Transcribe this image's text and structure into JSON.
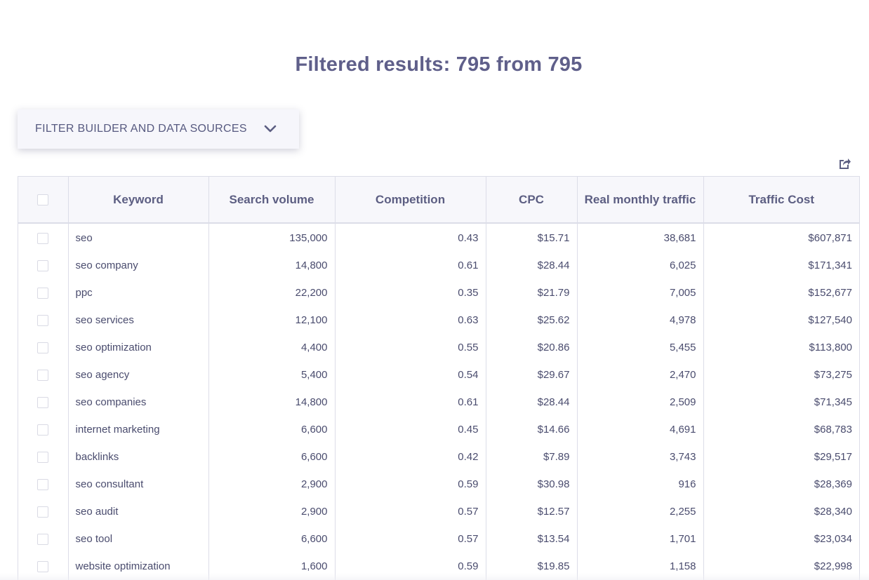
{
  "header": {
    "results_title": "Filtered results: 795 from 795"
  },
  "filter_toggle": {
    "label": "FILTER BUILDER AND DATA SOURCES",
    "icon": "chevron-down-icon"
  },
  "toolbar": {
    "export_icon": "export-icon"
  },
  "table": {
    "columns": [
      "Keyword",
      "Search volume",
      "Competition",
      "CPC",
      "Real monthly traffic",
      "Traffic Cost"
    ],
    "rows": [
      {
        "keyword": "seo",
        "search_volume": "135,000",
        "competition": "0.43",
        "cpc": "$15.71",
        "traffic": "38,681",
        "traffic_cost": "$607,871"
      },
      {
        "keyword": "seo company",
        "search_volume": "14,800",
        "competition": "0.61",
        "cpc": "$28.44",
        "traffic": "6,025",
        "traffic_cost": "$171,341"
      },
      {
        "keyword": "ppc",
        "search_volume": "22,200",
        "competition": "0.35",
        "cpc": "$21.79",
        "traffic": "7,005",
        "traffic_cost": "$152,677"
      },
      {
        "keyword": "seo services",
        "search_volume": "12,100",
        "competition": "0.63",
        "cpc": "$25.62",
        "traffic": "4,978",
        "traffic_cost": "$127,540"
      },
      {
        "keyword": "seo optimization",
        "search_volume": "4,400",
        "competition": "0.55",
        "cpc": "$20.86",
        "traffic": "5,455",
        "traffic_cost": "$113,800"
      },
      {
        "keyword": "seo agency",
        "search_volume": "5,400",
        "competition": "0.54",
        "cpc": "$29.67",
        "traffic": "2,470",
        "traffic_cost": "$73,275"
      },
      {
        "keyword": "seo companies",
        "search_volume": "14,800",
        "competition": "0.61",
        "cpc": "$28.44",
        "traffic": "2,509",
        "traffic_cost": "$71,345"
      },
      {
        "keyword": "internet marketing",
        "search_volume": "6,600",
        "competition": "0.45",
        "cpc": "$14.66",
        "traffic": "4,691",
        "traffic_cost": "$68,783"
      },
      {
        "keyword": "backlinks",
        "search_volume": "6,600",
        "competition": "0.42",
        "cpc": "$7.89",
        "traffic": "3,743",
        "traffic_cost": "$29,517"
      },
      {
        "keyword": "seo consultant",
        "search_volume": "2,900",
        "competition": "0.59",
        "cpc": "$30.98",
        "traffic": "916",
        "traffic_cost": "$28,369"
      },
      {
        "keyword": "seo audit",
        "search_volume": "2,900",
        "competition": "0.57",
        "cpc": "$12.57",
        "traffic": "2,255",
        "traffic_cost": "$28,340"
      },
      {
        "keyword": "seo tool",
        "search_volume": "6,600",
        "competition": "0.57",
        "cpc": "$13.54",
        "traffic": "1,701",
        "traffic_cost": "$23,034"
      },
      {
        "keyword": "website optimization",
        "search_volume": "1,600",
        "competition": "0.59",
        "cpc": "$19.85",
        "traffic": "1,158",
        "traffic_cost": "$22,998"
      }
    ]
  },
  "colors": {
    "title": "#5f5f8a",
    "text": "#4a4c6e",
    "header_bg": "#f7f7fb",
    "border": "#dcdde8"
  }
}
